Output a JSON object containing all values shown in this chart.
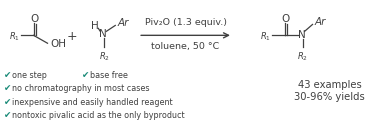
{
  "bg_color": "#ffffff",
  "teal": "#1a8a78",
  "dark": "#404040",
  "check_symbol": "✔",
  "bullet_lines_col1": [
    "one step",
    "no chromatography in most cases",
    "inexpensive and easily handled reagent",
    "nontoxic pivalic acid as the only byproduct"
  ],
  "bullet_lines_col2": [
    "base free"
  ],
  "conditions_line1": "Piv₂O (1.3 equiv.)",
  "conditions_line2": "toluene, 50 °C",
  "examples_line1": "43 examples",
  "examples_line2": "30-96% yields",
  "font_size_bullet": 5.8,
  "font_size_conditions": 6.8,
  "font_size_examples": 7.2,
  "font_size_chem": 7.5,
  "font_size_sub": 6.0,
  "font_size_plus": 9.0
}
